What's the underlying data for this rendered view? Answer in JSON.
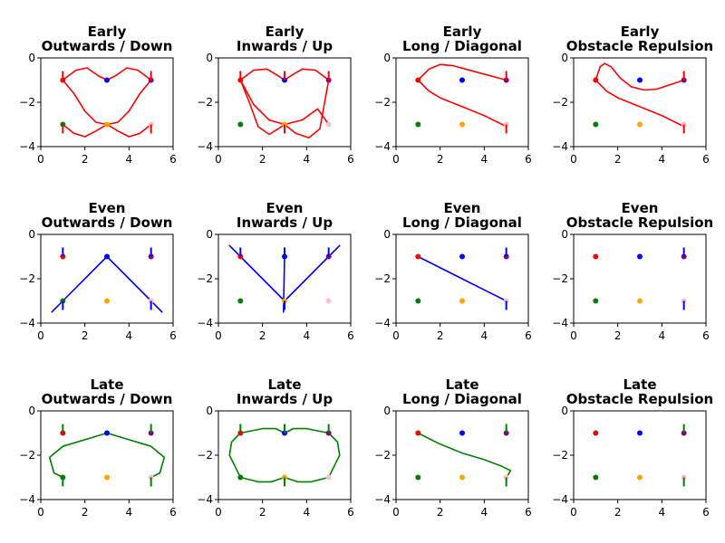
{
  "chart_data": [
    {
      "type": "line",
      "title": [
        "Early",
        "Outwards / Down"
      ],
      "xlim": [
        0,
        6
      ],
      "ylim": [
        -4,
        0
      ],
      "xticks": [
        0,
        2,
        4,
        6
      ],
      "yticks": [
        0,
        -2,
        -4
      ],
      "color": "#ff0000",
      "paths": [
        [
          [
            1,
            -1
          ],
          [
            1.6,
            -0.55
          ],
          [
            2.1,
            -0.45
          ],
          [
            2.6,
            -0.8
          ],
          [
            3,
            -1
          ],
          [
            3.4,
            -0.8
          ],
          [
            3.9,
            -0.45
          ],
          [
            4.4,
            -0.55
          ],
          [
            5,
            -1
          ]
        ],
        [
          [
            1,
            -1
          ],
          [
            1.5,
            -1.6
          ],
          [
            2,
            -2.4
          ],
          [
            2.5,
            -2.9
          ],
          [
            3,
            -3
          ],
          [
            3.5,
            -2.9
          ],
          [
            4,
            -2.4
          ],
          [
            4.5,
            -1.6
          ],
          [
            5,
            -1
          ]
        ],
        [
          [
            1,
            -3
          ],
          [
            1.5,
            -3.4
          ],
          [
            2,
            -3.55
          ],
          [
            2.5,
            -3.3
          ],
          [
            3,
            -3
          ],
          [
            3.5,
            -3.3
          ],
          [
            4,
            -3.55
          ],
          [
            4.5,
            -3.4
          ],
          [
            5,
            -3
          ]
        ]
      ],
      "arrows": [
        {
          "x": 1,
          "y": -1,
          "dir": "up"
        },
        {
          "x": 5,
          "y": -1,
          "dir": "up"
        },
        {
          "x": 1,
          "y": -3,
          "dir": "down"
        },
        {
          "x": 5,
          "y": -3,
          "dir": "down"
        }
      ]
    },
    {
      "type": "line",
      "title": [
        "Early",
        "Inwards / Up"
      ],
      "xlim": [
        0,
        6
      ],
      "ylim": [
        -4,
        0
      ],
      "xticks": [
        0,
        2,
        4,
        6
      ],
      "yticks": [
        0,
        -2,
        -4
      ],
      "color": "#ff0000",
      "paths": [
        [
          [
            1,
            -1
          ],
          [
            1.6,
            -0.55
          ],
          [
            2.2,
            -0.5
          ],
          [
            2.7,
            -0.8
          ],
          [
            3,
            -1
          ],
          [
            3.3,
            -0.8
          ],
          [
            3.8,
            -0.5
          ],
          [
            4.4,
            -0.55
          ],
          [
            5,
            -1
          ]
        ],
        [
          [
            1,
            -1
          ],
          [
            1.4,
            -2
          ],
          [
            1.8,
            -3.1
          ],
          [
            2.3,
            -3.45
          ],
          [
            2.7,
            -3.2
          ],
          [
            3,
            -3
          ],
          [
            3.5,
            -3.4
          ],
          [
            4.1,
            -3.6
          ],
          [
            4.6,
            -3.2
          ],
          [
            5,
            -1
          ]
        ],
        [
          [
            1,
            -1
          ],
          [
            1.6,
            -2.1
          ],
          [
            2.3,
            -2.8
          ],
          [
            3,
            -3
          ],
          [
            3.8,
            -2.8
          ],
          [
            4.5,
            -2.3
          ],
          [
            5,
            -3
          ]
        ]
      ],
      "arrows": [
        {
          "x": 1,
          "y": -1,
          "dir": "up"
        },
        {
          "x": 3,
          "y": -1,
          "dir": "up"
        },
        {
          "x": 5,
          "y": -1,
          "dir": "up"
        },
        {
          "x": 3,
          "y": -3,
          "dir": "down"
        }
      ]
    },
    {
      "type": "line",
      "title": [
        "Early",
        "Long / Diagonal"
      ],
      "xlim": [
        0,
        6
      ],
      "ylim": [
        -4,
        0
      ],
      "xticks": [
        0,
        2,
        4,
        6
      ],
      "yticks": [
        0,
        -2,
        -4
      ],
      "color": "#ff0000",
      "paths": [
        [
          [
            1,
            -1
          ],
          [
            1.5,
            -0.5
          ],
          [
            2,
            -0.3
          ],
          [
            2.6,
            -0.35
          ],
          [
            3.5,
            -0.6
          ],
          [
            5,
            -1
          ]
        ],
        [
          [
            1,
            -1
          ],
          [
            1.5,
            -1.5
          ],
          [
            2,
            -1.8
          ],
          [
            3,
            -2.2
          ],
          [
            4,
            -2.6
          ],
          [
            5,
            -3.1
          ]
        ]
      ],
      "arrows": [
        {
          "x": 5,
          "y": -1,
          "dir": "up"
        },
        {
          "x": 5,
          "y": -3,
          "dir": "down"
        }
      ]
    },
    {
      "type": "line",
      "title": [
        "Early",
        "Obstacle Repulsion"
      ],
      "xlim": [
        0,
        6
      ],
      "ylim": [
        -4,
        0
      ],
      "xticks": [
        0,
        2,
        4,
        6
      ],
      "yticks": [
        0,
        -2,
        -4
      ],
      "color": "#ff0000",
      "paths": [
        [
          [
            1,
            -1
          ],
          [
            1.2,
            -0.4
          ],
          [
            1.4,
            -0.25
          ],
          [
            1.7,
            -0.4
          ],
          [
            2.1,
            -0.9
          ],
          [
            2.6,
            -1.3
          ],
          [
            3.2,
            -1.45
          ],
          [
            3.8,
            -1.4
          ],
          [
            4.4,
            -1.2
          ],
          [
            5,
            -1
          ]
        ],
        [
          [
            1,
            -1
          ],
          [
            1.5,
            -1.5
          ],
          [
            2,
            -1.8
          ],
          [
            3,
            -2.2
          ],
          [
            4,
            -2.6
          ],
          [
            5,
            -3.1
          ]
        ]
      ],
      "arrows": [
        {
          "x": 5,
          "y": -1,
          "dir": "up"
        },
        {
          "x": 5,
          "y": -3,
          "dir": "down"
        }
      ]
    },
    {
      "type": "line",
      "title": [
        "Even",
        "Outwards / Down"
      ],
      "xlim": [
        0,
        6
      ],
      "ylim": [
        -4,
        0
      ],
      "xticks": [
        0,
        2,
        4,
        6
      ],
      "yticks": [
        0,
        -2,
        -4
      ],
      "color": "#0000ff",
      "paths": [
        [
          [
            0.5,
            -3.5
          ],
          [
            1,
            -3
          ],
          [
            3,
            -1
          ],
          [
            5,
            -3
          ],
          [
            5.5,
            -3.5
          ]
        ]
      ],
      "arrows": [
        {
          "x": 1,
          "y": -1,
          "dir": "up"
        },
        {
          "x": 5,
          "y": -1,
          "dir": "up"
        },
        {
          "x": 1,
          "y": -3,
          "dir": "down"
        },
        {
          "x": 5,
          "y": -3,
          "dir": "down"
        }
      ]
    },
    {
      "type": "line",
      "title": [
        "Even",
        "Inwards / Up"
      ],
      "xlim": [
        0,
        6
      ],
      "ylim": [
        -4,
        0
      ],
      "xticks": [
        0,
        2,
        4,
        6
      ],
      "yticks": [
        0,
        -2,
        -4
      ],
      "color": "#0000ff",
      "paths": [
        [
          [
            0.5,
            -0.5
          ],
          [
            1,
            -1
          ],
          [
            3,
            -3
          ],
          [
            5,
            -1
          ],
          [
            5.5,
            -0.5
          ]
        ],
        [
          [
            3,
            -1
          ],
          [
            2.95,
            -3.5
          ]
        ]
      ],
      "arrows": [
        {
          "x": 1,
          "y": -1,
          "dir": "up"
        },
        {
          "x": 3,
          "y": -1,
          "dir": "up"
        },
        {
          "x": 5,
          "y": -1,
          "dir": "up"
        },
        {
          "x": 3,
          "y": -3,
          "dir": "down"
        }
      ]
    },
    {
      "type": "line",
      "title": [
        "Even",
        "Long / Diagonal"
      ],
      "xlim": [
        0,
        6
      ],
      "ylim": [
        -4,
        0
      ],
      "xticks": [
        0,
        2,
        4,
        6
      ],
      "yticks": [
        0,
        -2,
        -4
      ],
      "color": "#0000ff",
      "paths": [
        [
          [
            1,
            -1
          ],
          [
            4,
            -2.5
          ],
          [
            5,
            -3
          ]
        ]
      ],
      "arrows": [
        {
          "x": 5,
          "y": -1,
          "dir": "up"
        },
        {
          "x": 5,
          "y": -3,
          "dir": "down"
        }
      ]
    },
    {
      "type": "line",
      "title": [
        "Even",
        "Obstacle Repulsion"
      ],
      "xlim": [
        0,
        6
      ],
      "ylim": [
        -4,
        0
      ],
      "xticks": [
        0,
        2,
        4,
        6
      ],
      "yticks": [
        0,
        -2,
        -4
      ],
      "color": "#0000ff",
      "paths": [],
      "arrows": [
        {
          "x": 5,
          "y": -1,
          "dir": "up"
        },
        {
          "x": 5,
          "y": -3,
          "dir": "down"
        }
      ]
    },
    {
      "type": "line",
      "title": [
        "Late",
        "Outwards / Down"
      ],
      "xlim": [
        0,
        6
      ],
      "ylim": [
        -4,
        0
      ],
      "xticks": [
        0,
        2,
        4,
        6
      ],
      "yticks": [
        0,
        -2,
        -4
      ],
      "color": "#008000",
      "paths": [
        [
          [
            1,
            -3
          ],
          [
            0.6,
            -2.8
          ],
          [
            0.4,
            -2.1
          ],
          [
            1,
            -1.6
          ],
          [
            3,
            -1
          ],
          [
            5,
            -1.6
          ],
          [
            5.6,
            -2.1
          ],
          [
            5.4,
            -2.8
          ],
          [
            5,
            -3
          ]
        ]
      ],
      "arrows": [
        {
          "x": 1,
          "y": -1,
          "dir": "up"
        },
        {
          "x": 5,
          "y": -1,
          "dir": "up"
        },
        {
          "x": 1,
          "y": -3,
          "dir": "down"
        },
        {
          "x": 5,
          "y": -3,
          "dir": "down"
        }
      ]
    },
    {
      "type": "line",
      "title": [
        "Late",
        "Inwards / Up"
      ],
      "xlim": [
        0,
        6
      ],
      "ylim": [
        -4,
        0
      ],
      "xticks": [
        0,
        2,
        4,
        6
      ],
      "yticks": [
        0,
        -2,
        -4
      ],
      "color": "#008000",
      "paths": [
        [
          [
            1,
            -1
          ],
          [
            0.6,
            -1.4
          ],
          [
            0.5,
            -2
          ],
          [
            0.8,
            -2.6
          ],
          [
            1,
            -3
          ],
          [
            1.8,
            -3.2
          ],
          [
            2.4,
            -3.2
          ],
          [
            3,
            -3
          ],
          [
            3.6,
            -3.2
          ],
          [
            4.2,
            -3.2
          ],
          [
            5,
            -3
          ],
          [
            5.2,
            -2.6
          ],
          [
            5.5,
            -2
          ],
          [
            5.4,
            -1.4
          ],
          [
            5,
            -1
          ]
        ],
        [
          [
            1,
            -1
          ],
          [
            2,
            -0.8
          ],
          [
            2.6,
            -0.8
          ],
          [
            3,
            -1
          ],
          [
            3.4,
            -0.8
          ],
          [
            4,
            -0.8
          ],
          [
            5,
            -1
          ]
        ]
      ],
      "arrows": [
        {
          "x": 1,
          "y": -1,
          "dir": "up"
        },
        {
          "x": 3,
          "y": -1,
          "dir": "up"
        },
        {
          "x": 5,
          "y": -1,
          "dir": "up"
        },
        {
          "x": 3,
          "y": -3,
          "dir": "down"
        }
      ]
    },
    {
      "type": "line",
      "title": [
        "Late",
        "Long / Diagonal"
      ],
      "xlim": [
        0,
        6
      ],
      "ylim": [
        -4,
        0
      ],
      "xticks": [
        0,
        2,
        4,
        6
      ],
      "yticks": [
        0,
        -2,
        -4
      ],
      "color": "#008000",
      "paths": [
        [
          [
            1,
            -1
          ],
          [
            2,
            -1.5
          ],
          [
            3,
            -1.9
          ],
          [
            4,
            -2.2
          ],
          [
            4.8,
            -2.5
          ],
          [
            5.2,
            -2.7
          ],
          [
            5,
            -3
          ]
        ]
      ],
      "arrows": [
        {
          "x": 5,
          "y": -1,
          "dir": "up"
        },
        {
          "x": 5,
          "y": -3,
          "dir": "down"
        }
      ]
    },
    {
      "type": "line",
      "title": [
        "Late",
        "Obstacle Repulsion"
      ],
      "xlim": [
        0,
        6
      ],
      "ylim": [
        -4,
        0
      ],
      "xticks": [
        0,
        2,
        4,
        6
      ],
      "yticks": [
        0,
        -2,
        -4
      ],
      "color": "#008000",
      "paths": [],
      "arrows": [
        {
          "x": 5,
          "y": -1,
          "dir": "up"
        },
        {
          "x": 5,
          "y": -3,
          "dir": "down"
        }
      ]
    }
  ],
  "points": [
    {
      "x": 1,
      "y": -1,
      "color": "#ff0000"
    },
    {
      "x": 3,
      "y": -1,
      "color": "#0000ff"
    },
    {
      "x": 5,
      "y": -1,
      "color": "#800080"
    },
    {
      "x": 1,
      "y": -3,
      "color": "#008000"
    },
    {
      "x": 3,
      "y": -3,
      "color": "#ffa500"
    },
    {
      "x": 5,
      "y": -3,
      "color": "#ffc0cb"
    }
  ]
}
